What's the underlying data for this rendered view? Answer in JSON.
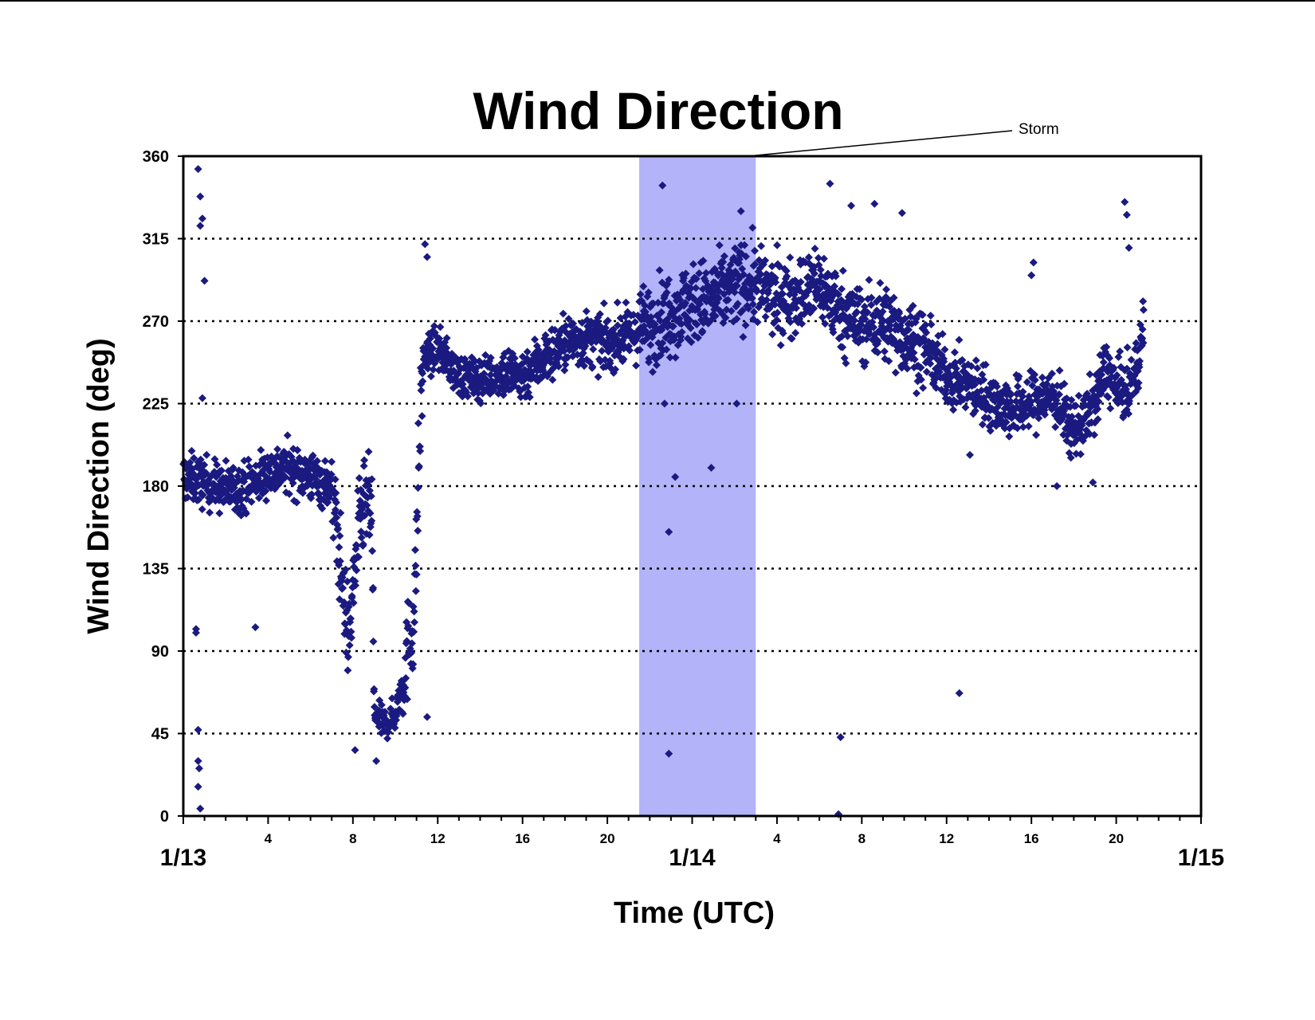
{
  "chart_data": {
    "type": "scatter",
    "title": "Wind Direction",
    "xlabel": "Time (UTC)",
    "ylabel": "Wind Direction (deg)",
    "ylim": [
      0,
      360
    ],
    "yticks": [
      0,
      45,
      90,
      135,
      180,
      225,
      270,
      315,
      360
    ],
    "x_units": "hours since 1/13 00:00 UTC",
    "xlim": [
      0,
      48
    ],
    "day_ticks": [
      {
        "x": 0,
        "label": "1/13"
      },
      {
        "x": 24,
        "label": "1/14"
      },
      {
        "x": 48,
        "label": "1/15"
      }
    ],
    "hour_ticks": [
      {
        "x": 4,
        "label": "4"
      },
      {
        "x": 8,
        "label": "8"
      },
      {
        "x": 12,
        "label": "12"
      },
      {
        "x": 16,
        "label": "16"
      },
      {
        "x": 20,
        "label": "20"
      },
      {
        "x": 28,
        "label": "4"
      },
      {
        "x": 32,
        "label": "8"
      },
      {
        "x": 36,
        "label": "12"
      },
      {
        "x": 40,
        "label": "16"
      },
      {
        "x": 44,
        "label": "20"
      }
    ],
    "grid": "horizontal dotted",
    "shaded_region": {
      "x_start": 21.5,
      "x_end": 27.0,
      "label": "Storm",
      "color": "#b3b3fa"
    },
    "marker_color": "#1a1a80",
    "marker": "diamond",
    "series_trend": [
      [
        0.0,
        185
      ],
      [
        1.0,
        182
      ],
      [
        2.0,
        178
      ],
      [
        3.0,
        180
      ],
      [
        4.0,
        188
      ],
      [
        5.0,
        190
      ],
      [
        6.0,
        185
      ],
      [
        7.0,
        180
      ],
      [
        7.4,
        140
      ],
      [
        7.8,
        95
      ],
      [
        8.2,
        150
      ],
      [
        8.6,
        172
      ],
      [
        8.9,
        165
      ],
      [
        9.0,
        55
      ],
      [
        9.5,
        50
      ],
      [
        10.0,
        55
      ],
      [
        10.5,
        85
      ],
      [
        10.9,
        110
      ],
      [
        11.1,
        190
      ],
      [
        11.3,
        250
      ],
      [
        12.0,
        255
      ],
      [
        13.0,
        240
      ],
      [
        14.0,
        238
      ],
      [
        15.0,
        242
      ],
      [
        16.0,
        240
      ],
      [
        17.0,
        250
      ],
      [
        18.0,
        258
      ],
      [
        19.0,
        260
      ],
      [
        20.0,
        258
      ],
      [
        21.0,
        262
      ],
      [
        22.0,
        268
      ],
      [
        23.0,
        275
      ],
      [
        24.0,
        280
      ],
      [
        25.0,
        282
      ],
      [
        26.0,
        290
      ],
      [
        27.0,
        290
      ],
      [
        28.0,
        282
      ],
      [
        29.0,
        285
      ],
      [
        30.0,
        290
      ],
      [
        31.0,
        275
      ],
      [
        32.0,
        268
      ],
      [
        33.0,
        270
      ],
      [
        34.0,
        262
      ],
      [
        35.0,
        255
      ],
      [
        36.0,
        240
      ],
      [
        37.0,
        235
      ],
      [
        38.0,
        228
      ],
      [
        39.0,
        222
      ],
      [
        40.0,
        225
      ],
      [
        41.0,
        230
      ],
      [
        42.0,
        210
      ],
      [
        43.0,
        225
      ],
      [
        43.5,
        245
      ],
      [
        44.0,
        232
      ],
      [
        44.6,
        232
      ],
      [
        45.0,
        245
      ],
      [
        45.3,
        270
      ]
    ],
    "outliers": [
      [
        0.7,
        353
      ],
      [
        0.8,
        338
      ],
      [
        0.8,
        322
      ],
      [
        0.9,
        326
      ],
      [
        1.0,
        292
      ],
      [
        0.7,
        47
      ],
      [
        0.7,
        30
      ],
      [
        0.75,
        26
      ],
      [
        0.7,
        16
      ],
      [
        0.8,
        4
      ],
      [
        0.6,
        102
      ],
      [
        0.6,
        100
      ],
      [
        0.9,
        228
      ],
      [
        3.4,
        103
      ],
      [
        11.4,
        312
      ],
      [
        11.5,
        305
      ],
      [
        11.5,
        54
      ],
      [
        9.1,
        30
      ],
      [
        8.1,
        36
      ],
      [
        22.6,
        344
      ],
      [
        22.9,
        155
      ],
      [
        23.2,
        185
      ],
      [
        22.9,
        34
      ],
      [
        24.9,
        190
      ],
      [
        22.7,
        225
      ],
      [
        26.1,
        225
      ],
      [
        26.3,
        330
      ],
      [
        31.5,
        333
      ],
      [
        32.6,
        334
      ],
      [
        33.9,
        329
      ],
      [
        30.5,
        345
      ],
      [
        31.0,
        43
      ],
      [
        30.9,
        1
      ],
      [
        37.1,
        197
      ],
      [
        36.6,
        67
      ],
      [
        40.1,
        302
      ],
      [
        40.0,
        295
      ],
      [
        44.4,
        335
      ],
      [
        44.5,
        328
      ],
      [
        44.6,
        310
      ],
      [
        42.9,
        182
      ],
      [
        41.2,
        180
      ]
    ]
  },
  "annotation": {
    "storm_label": "Storm"
  }
}
